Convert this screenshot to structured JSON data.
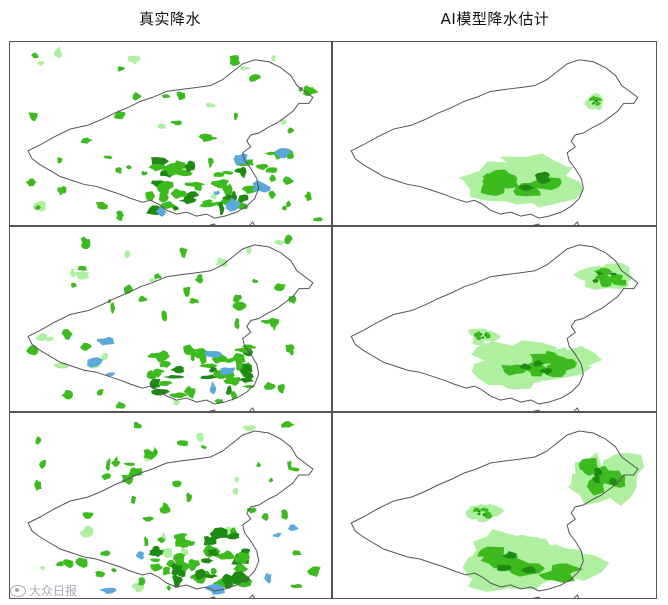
{
  "titles": {
    "left": "真实降水",
    "right": "AI模型降水估计"
  },
  "colors": {
    "light_rain": "#aef0a0",
    "moderate_rain": "#3cba1e",
    "heavy_rain": "#1e8a14",
    "storm": "#5aa8dc",
    "boundary": "#555555"
  },
  "panels": [
    {
      "row": 1,
      "column": "left",
      "kind": "observed"
    },
    {
      "row": 1,
      "column": "right",
      "kind": "ai_estimate"
    },
    {
      "row": 2,
      "column": "left",
      "kind": "observed"
    },
    {
      "row": 2,
      "column": "right",
      "kind": "ai_estimate"
    },
    {
      "row": 3,
      "column": "left",
      "kind": "observed"
    },
    {
      "row": 3,
      "column": "right",
      "kind": "ai_estimate"
    }
  ],
  "watermark": "大众日报"
}
